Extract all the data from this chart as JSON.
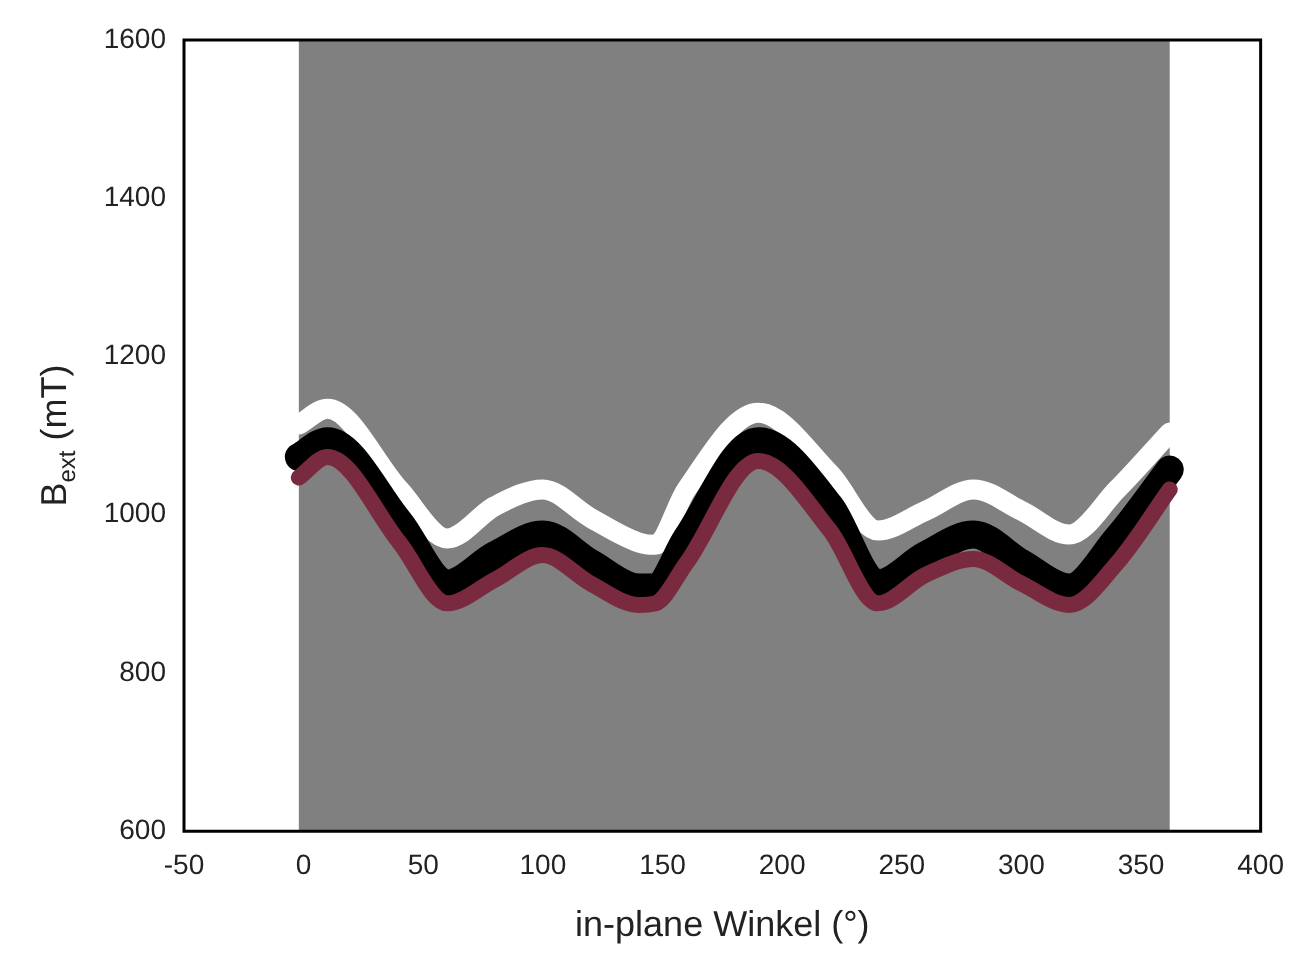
{
  "chart_data": {
    "type": "line",
    "xlabel": "in-plane Winkel (°)",
    "ylabel": "B$_{ext}$ (mT)",
    "x": [
      -2,
      10,
      40,
      60,
      80,
      100,
      120,
      140,
      147,
      160,
      190,
      220,
      240,
      260,
      280,
      300,
      320,
      340,
      362
    ],
    "series": [
      {
        "color": "#ffffff",
        "values": [
          1114,
          1134,
          1032,
          970,
          1011,
          1032,
          996,
          965,
          962,
          1032,
          1129,
          1052,
          980,
          1005,
          1032,
          1005,
          975,
          1032,
          1104
        ]
      },
      {
        "color": "#000000",
        "values": [
          1073,
          1093,
          991,
          913,
          949,
          975,
          939,
          908,
          908,
          970,
          1093,
          1011,
          913,
          949,
          975,
          939,
          908,
          970,
          1057
        ]
      },
      {
        "color": "#7a2a3e",
        "values": [
          1047,
          1073,
          965,
          888,
          918,
          949,
          913,
          886,
          888,
          939,
          1068,
          980,
          888,
          924,
          944,
          913,
          886,
          939,
          1032
        ]
      }
    ],
    "xlim": [
      -50,
      400
    ],
    "xticks": [
      -50,
      0,
      50,
      100,
      150,
      200,
      250,
      300,
      350,
      400
    ],
    "ylim": [
      600,
      1600
    ],
    "yticks": [
      600,
      800,
      1000,
      1200,
      1400,
      1600
    ],
    "bands": [
      {
        "axis": "x",
        "from": -2,
        "to": 362,
        "color": "#808080"
      }
    ],
    "grid": false,
    "legend": false,
    "marker": "none",
    "line_style": "solid"
  }
}
